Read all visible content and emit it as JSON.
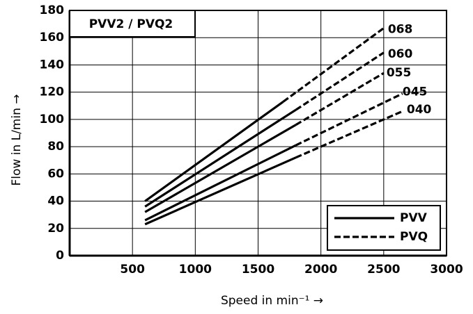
{
  "chart_data": {
    "type": "line",
    "title": "PVV2 / PVQ2",
    "x_label": "Speed in min⁻¹ →",
    "y_label": "Flow in L/min →",
    "xlim": [
      0,
      3000
    ],
    "xticks": [
      500,
      1000,
      1500,
      2000,
      2500,
      3000
    ],
    "ylim": [
      0,
      180
    ],
    "yticks": [
      0,
      20,
      40,
      60,
      80,
      100,
      120,
      140,
      160,
      180
    ],
    "grid": true,
    "color": "#000000",
    "legend": {
      "position": "lower right",
      "solid": "PVV",
      "dashed": "PVQ"
    },
    "series": [
      {
        "name": "068",
        "pvv": {
          "x": [
            600,
            1700
          ],
          "values": [
            40,
            113
          ]
        },
        "pvq": {
          "x": [
            1700,
            2500
          ],
          "values": [
            113,
            167
          ]
        }
      },
      {
        "name": "060",
        "pvv": {
          "x": [
            600,
            1800
          ],
          "values": [
            36,
            107
          ]
        },
        "pvq": {
          "x": [
            1800,
            2500
          ],
          "values": [
            107,
            149
          ]
        }
      },
      {
        "name": "055",
        "pvv": {
          "x": [
            600,
            1800
          ],
          "values": [
            32,
            96
          ]
        },
        "pvq": {
          "x": [
            1800,
            2500
          ],
          "values": [
            96,
            134
          ]
        }
      },
      {
        "name": "045",
        "pvv": {
          "x": [
            600,
            1800
          ],
          "values": [
            26,
            81
          ]
        },
        "pvq": {
          "x": [
            1800,
            2650
          ],
          "values": [
            81,
            119
          ]
        }
      },
      {
        "name": "040",
        "pvv": {
          "x": [
            600,
            1800
          ],
          "values": [
            23,
            72
          ]
        },
        "pvq": {
          "x": [
            1800,
            2650
          ],
          "values": [
            72,
            106
          ]
        }
      }
    ]
  }
}
